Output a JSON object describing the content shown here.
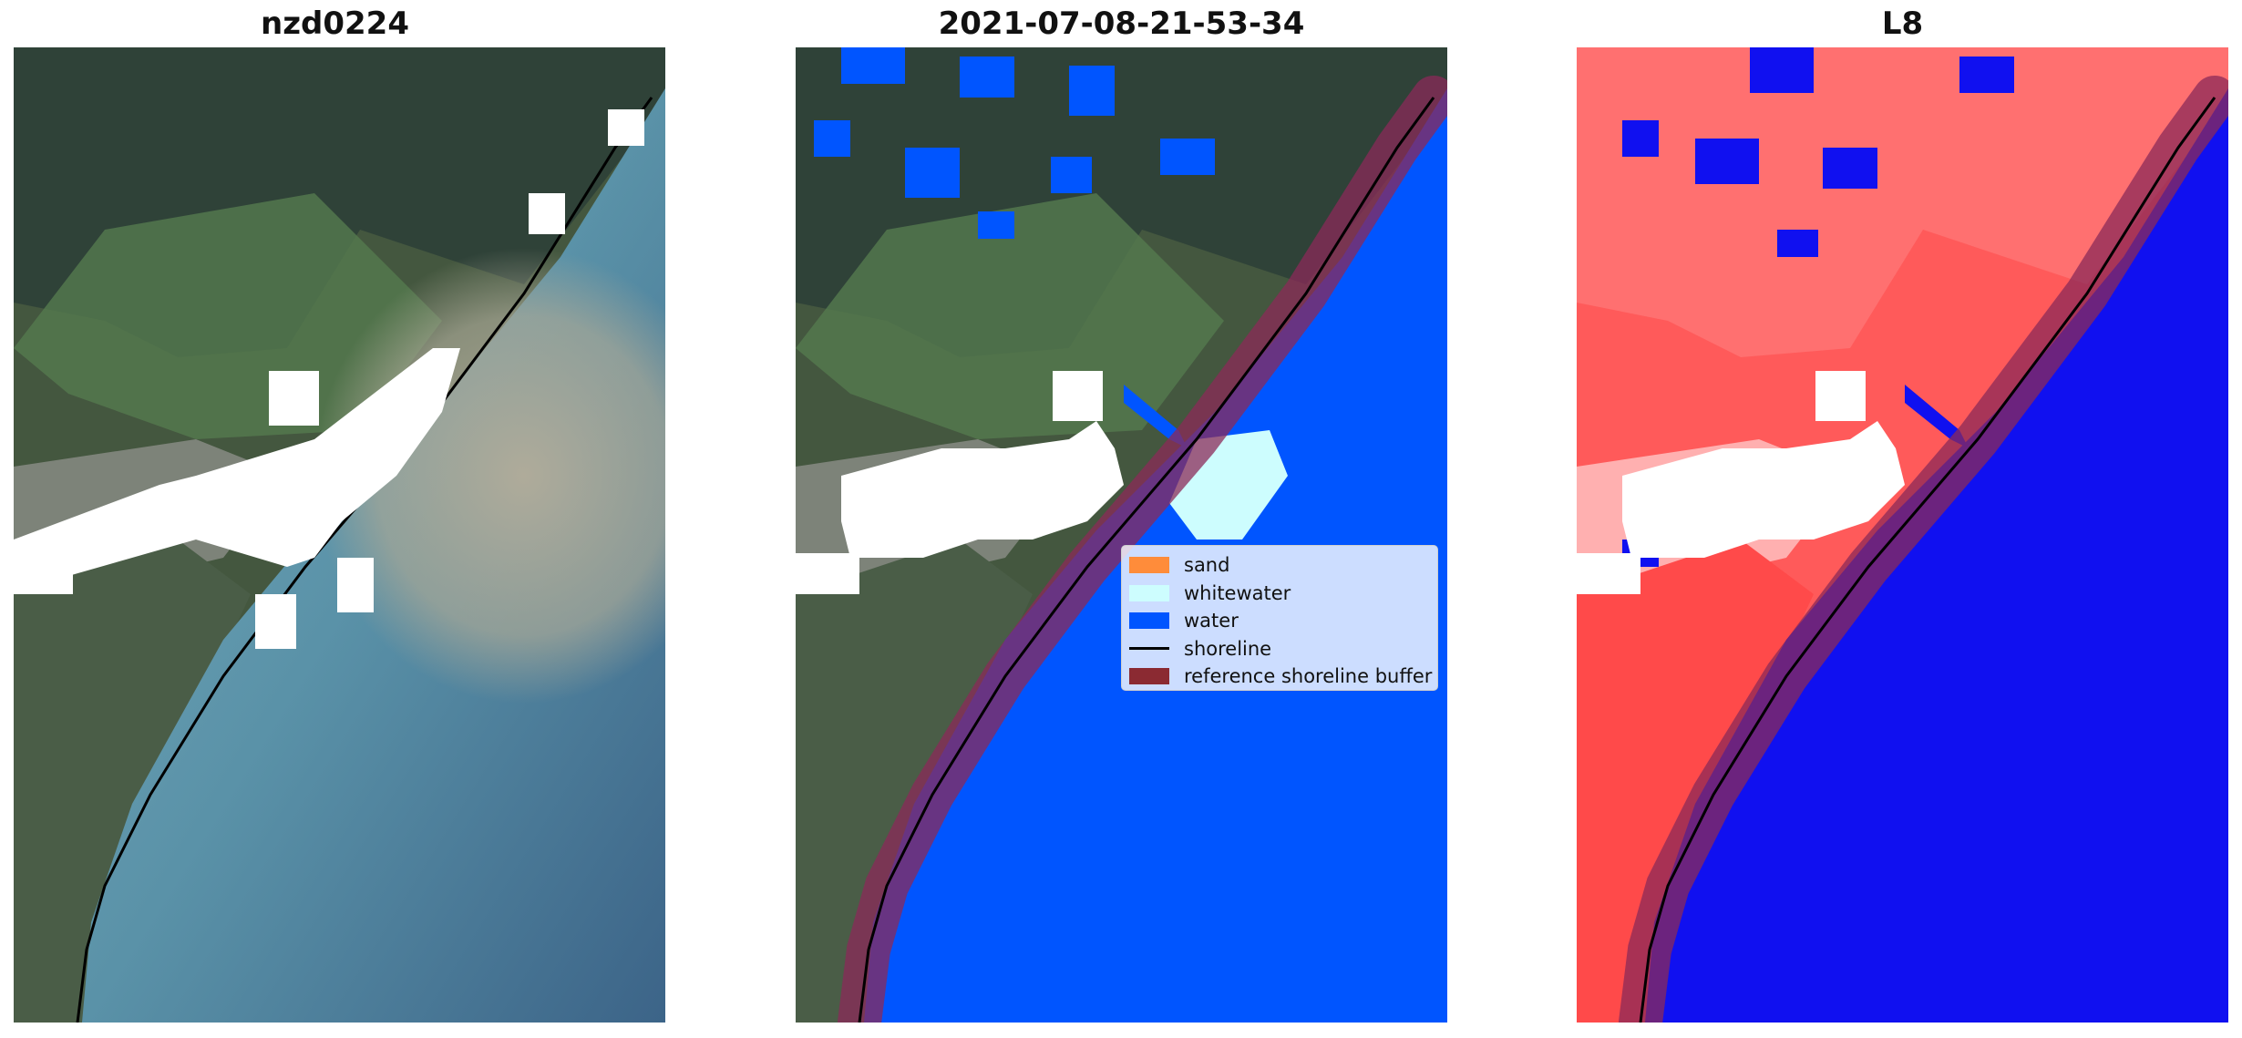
{
  "panels": [
    {
      "title": "nzd0224"
    },
    {
      "title": "2021-07-08-21-53-34"
    },
    {
      "title": "L8"
    }
  ],
  "legend": {
    "items": [
      {
        "label": "sand",
        "color": "#ff8c3a"
      },
      {
        "label": "whitewater",
        "color": "#cdfdfe"
      },
      {
        "label": "water",
        "color": "#0055ff"
      },
      {
        "label": "shoreline",
        "color": "#000000"
      },
      {
        "label": "reference shoreline buffer",
        "color": "#8b2a32"
      }
    ]
  },
  "colors": {
    "land_dark": "#3a4c3e",
    "land_green": "#4d6a4a",
    "sea_teal": "#5e94a6",
    "sea_deep": "#3f6a8a",
    "sediment_plume": "#a7a79a",
    "cloud_mask": "#ffffff",
    "index_land": "#ff4040",
    "index_water": "#1010f0",
    "buffer": "#8b2a58"
  }
}
